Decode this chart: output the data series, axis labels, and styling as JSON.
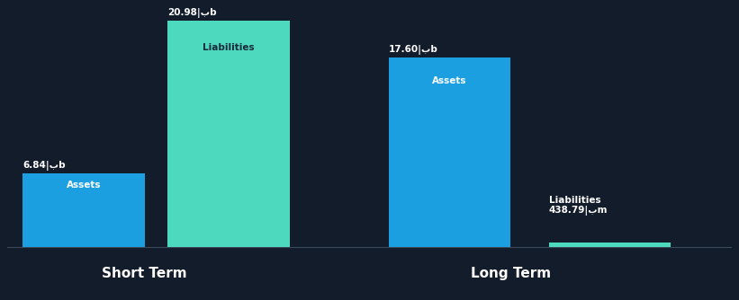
{
  "background_color": "#131c2b",
  "asset_color": "#1b9fe0",
  "liability_color": "#4dd9be",
  "text_color": "#ffffff",
  "dark_text_color": "#1a2a3a",
  "groups": [
    "Short Term",
    "Long Term"
  ],
  "assets": [
    6.84,
    17.6
  ],
  "liabilities": [
    20.98,
    0.43879
  ],
  "asset_value_labels": [
    "6.84|بb",
    "17.60|بb"
  ],
  "liability_value_labels": [
    "20.98|بb",
    "438.79|بm"
  ],
  "bar_inner_labels_assets": [
    "Assets",
    "Assets"
  ],
  "bar_inner_labels_liabilities": [
    "Liabilities",
    "Liabilities"
  ],
  "group_labels": [
    "Short Term",
    "Long Term"
  ],
  "scale_max": 21.5
}
